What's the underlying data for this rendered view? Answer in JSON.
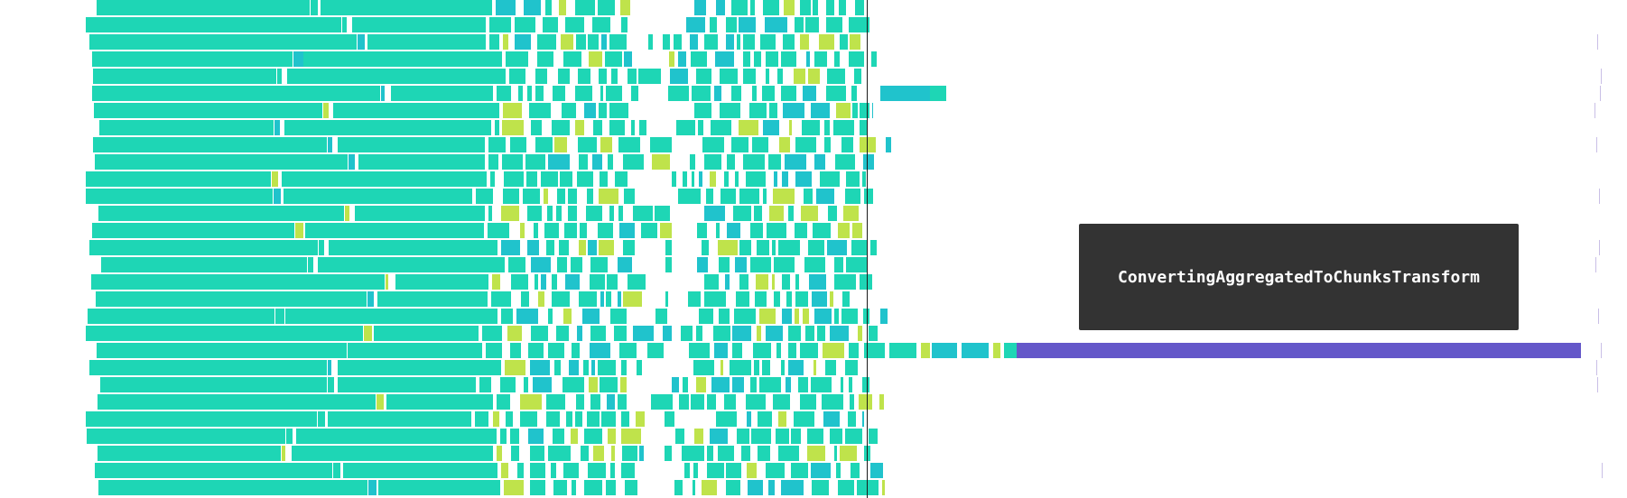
{
  "tooltip": {
    "text": "ConvertingAggregatedToChunksTransform"
  },
  "colors": {
    "main": "#1ed6b5",
    "accent": "#20c3cc",
    "lime": "#bfe34b",
    "highlight": "#6457c9",
    "divider": "#ffffff",
    "tick": "#c9bfe6"
  }
}
